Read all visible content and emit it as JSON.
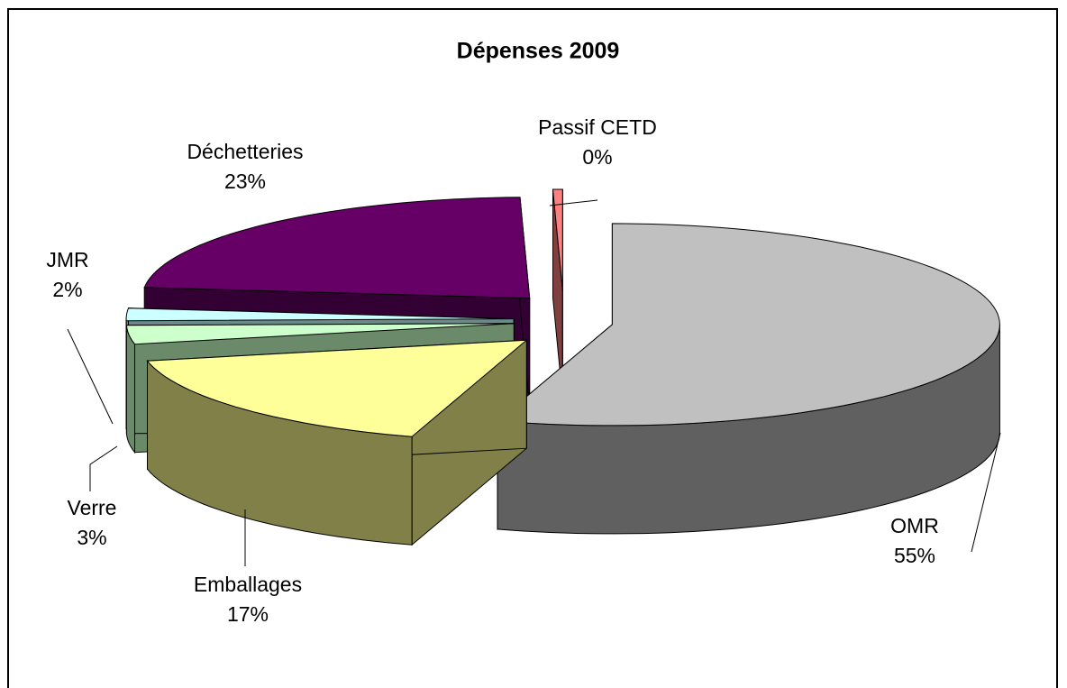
{
  "chart_data": {
    "type": "pie3d",
    "title": "Dépenses 2009",
    "categories": [
      "OMR",
      "Emballages",
      "Verre",
      "JMR",
      "Déchetteries",
      "Passif CETD"
    ],
    "values": [
      55,
      17,
      3,
      2,
      23,
      0.4
    ],
    "value_labels": [
      "55%",
      "17%",
      "3%",
      "2%",
      "23%",
      "0%"
    ],
    "colors": [
      "#c0c0c0",
      "#ffff99",
      "#ccffcc",
      "#ccffff",
      "#660066",
      "#ff8080"
    ],
    "side_colors": [
      "#606060",
      "#808048",
      "#6a8a6a",
      "#6a8a8a",
      "#330033",
      "#804040"
    ]
  }
}
